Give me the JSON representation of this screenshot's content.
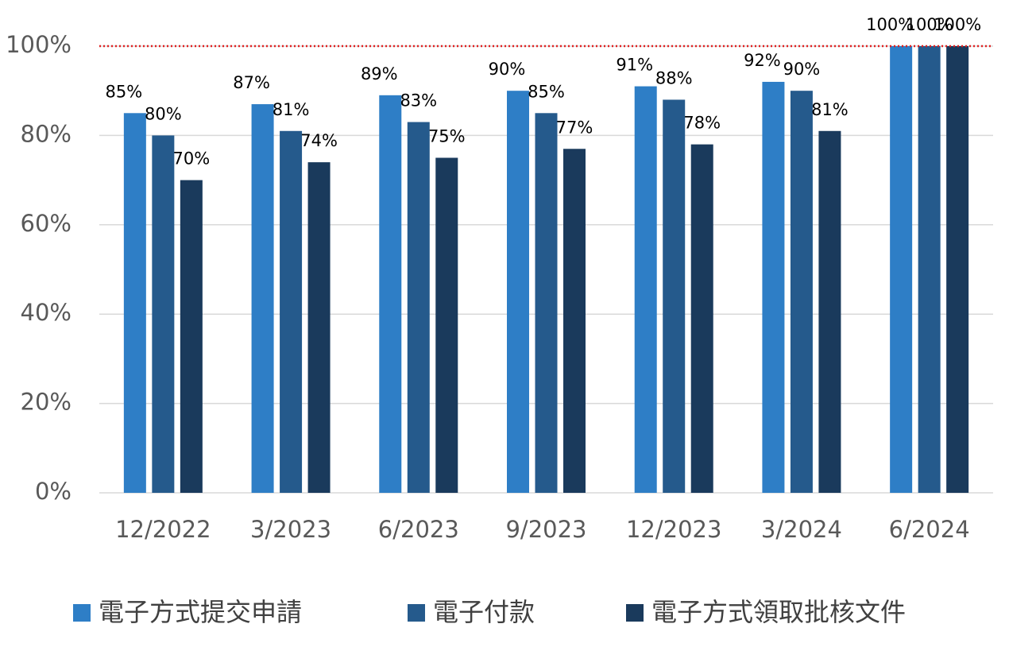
{
  "chart_data": {
    "type": "bar",
    "categories": [
      "12/2022",
      "3/2023",
      "6/2023",
      "9/2023",
      "12/2023",
      "3/2024",
      "6/2024"
    ],
    "series": [
      {
        "name": "電子方式提交申請",
        "color": "#2e7ec6",
        "values": [
          85,
          87,
          89,
          90,
          91,
          92,
          100
        ],
        "value_labels": [
          "85%",
          "87%",
          "89%",
          "90%",
          "91%",
          "92%",
          "100%"
        ]
      },
      {
        "name": "電子付款",
        "color": "#255a8c",
        "values": [
          80,
          81,
          83,
          85,
          88,
          90,
          100
        ],
        "value_labels": [
          "80%",
          "81%",
          "83%",
          "85%",
          "88%",
          "90%",
          "100%"
        ]
      },
      {
        "name": "電子方式領取批核文件",
        "color": "#1a3a5c",
        "values": [
          70,
          74,
          75,
          77,
          78,
          81,
          100
        ],
        "value_labels": [
          "70%",
          "74%",
          "75%",
          "77%",
          "78%",
          "81%",
          "100%"
        ]
      }
    ],
    "ylim": [
      0,
      100
    ],
    "yticks": [
      {
        "value": 0,
        "label": "0%"
      },
      {
        "value": 20,
        "label": "20%"
      },
      {
        "value": 40,
        "label": "40%"
      },
      {
        "value": 60,
        "label": "60%"
      },
      {
        "value": 80,
        "label": "80%"
      },
      {
        "value": 100,
        "label": "100%"
      }
    ],
    "grid": true,
    "reference_line": {
      "value": 100,
      "color": "#e02020"
    },
    "legend": "bottom"
  }
}
